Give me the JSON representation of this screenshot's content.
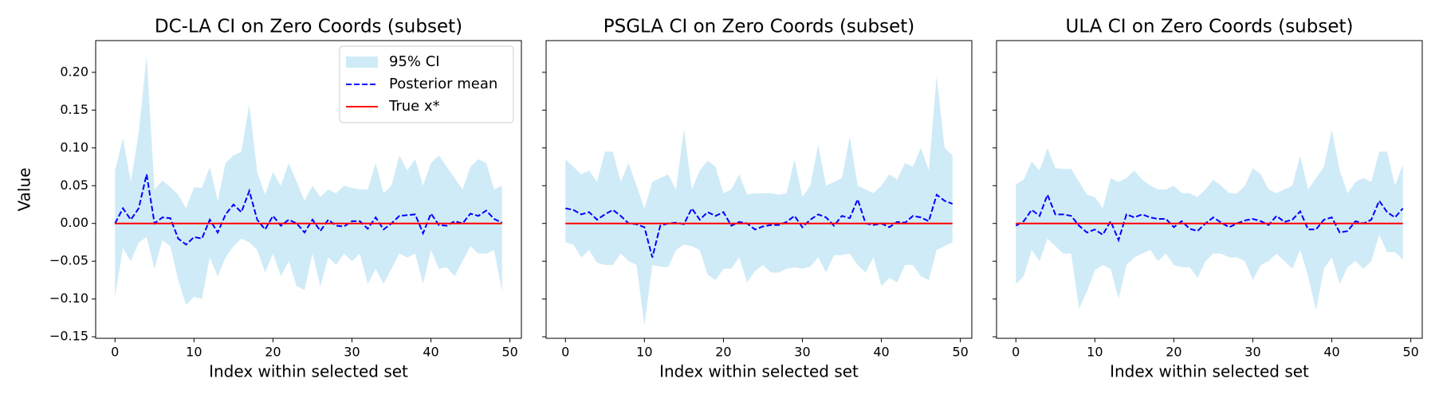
{
  "chart_data": [
    {
      "type": "ci_band",
      "title": "DC-LA CI on Zero Coords (subset)",
      "xlabel": "Index within selected set",
      "ylabel": "Value",
      "legend": "upper right",
      "sharey_labels": true,
      "x": [
        0,
        1,
        2,
        3,
        4,
        5,
        6,
        7,
        8,
        9,
        10,
        11,
        12,
        13,
        14,
        15,
        16,
        17,
        18,
        19,
        20,
        21,
        22,
        23,
        24,
        25,
        26,
        27,
        28,
        29,
        30,
        31,
        32,
        33,
        34,
        35,
        36,
        37,
        38,
        39,
        40,
        41,
        42,
        43,
        44,
        45,
        46,
        47,
        48,
        49
      ],
      "xlim": [
        -2.45,
        51.45
      ],
      "xticks": [
        0,
        10,
        20,
        30,
        40,
        50
      ],
      "ylim": [
        -0.152,
        0.242
      ],
      "yticks": [
        {
          "value": -0.15,
          "label": "−0.15"
        },
        {
          "value": -0.1,
          "label": "−0.10"
        },
        {
          "value": -0.05,
          "label": "−0.05"
        },
        {
          "value": 0,
          "label": "0.00"
        },
        {
          "value": 0.05,
          "label": "0.05"
        },
        {
          "value": 0.1,
          "label": "0.10"
        },
        {
          "value": 0.15,
          "label": "0.15"
        },
        {
          "value": 0.2,
          "label": "0.20"
        }
      ],
      "series": [
        {
          "name": "95% CI",
          "kind": "band",
          "color": "#87ceeb",
          "alpha": 0.4,
          "upper": [
            0.07,
            0.113,
            0.055,
            0.12,
            0.222,
            0.045,
            0.057,
            0.048,
            0.038,
            0.02,
            0.048,
            0.047,
            0.075,
            0.03,
            0.08,
            0.09,
            0.095,
            0.158,
            0.068,
            0.038,
            0.068,
            0.05,
            0.08,
            0.055,
            0.03,
            0.05,
            0.035,
            0.045,
            0.04,
            0.05,
            0.047,
            0.045,
            0.045,
            0.08,
            0.04,
            0.05,
            0.09,
            0.07,
            0.085,
            0.05,
            0.08,
            0.09,
            0.075,
            0.06,
            0.045,
            0.075,
            0.085,
            0.08,
            0.045,
            0.05
          ],
          "lower": [
            -0.097,
            -0.033,
            -0.05,
            -0.025,
            -0.018,
            -0.06,
            -0.022,
            -0.03,
            -0.075,
            -0.108,
            -0.097,
            -0.1,
            -0.045,
            -0.07,
            -0.045,
            -0.03,
            -0.02,
            -0.025,
            -0.035,
            -0.065,
            -0.04,
            -0.07,
            -0.05,
            -0.083,
            -0.088,
            -0.04,
            -0.083,
            -0.045,
            -0.055,
            -0.04,
            -0.05,
            -0.04,
            -0.08,
            -0.06,
            -0.08,
            -0.06,
            -0.04,
            -0.045,
            -0.04,
            -0.08,
            -0.035,
            -0.06,
            -0.058,
            -0.07,
            -0.05,
            -0.03,
            -0.04,
            -0.04,
            -0.035,
            -0.09
          ]
        },
        {
          "name": "Posterior mean",
          "kind": "dashed",
          "color": "#0000ff",
          "values": [
            0,
            0.02,
            0.005,
            0.02,
            0.065,
            0,
            0.008,
            0.007,
            -0.02,
            -0.028,
            -0.018,
            -0.02,
            0.005,
            -0.012,
            0.012,
            0.025,
            0.015,
            0.043,
            0.005,
            -0.008,
            0.01,
            -0.003,
            0.005,
            0,
            -0.012,
            0.005,
            -0.01,
            0.005,
            -0.003,
            -0.004,
            0.003,
            0.003,
            -0.007,
            0.008,
            -0.008,
            0,
            0.01,
            0.011,
            0.012,
            -0.013,
            0.013,
            -0.002,
            -0.003,
            0.003,
            0,
            0.013,
            0.01,
            0.017,
            0.006,
            0.001
          ]
        },
        {
          "name": "True x*",
          "kind": "solid",
          "color": "#ff0000",
          "values": [
            0,
            0,
            0,
            0,
            0,
            0,
            0,
            0,
            0,
            0,
            0,
            0,
            0,
            0,
            0,
            0,
            0,
            0,
            0,
            0,
            0,
            0,
            0,
            0,
            0,
            0,
            0,
            0,
            0,
            0,
            0,
            0,
            0,
            0,
            0,
            0,
            0,
            0,
            0,
            0,
            0,
            0,
            0,
            0,
            0,
            0,
            0,
            0,
            0,
            0
          ]
        }
      ]
    },
    {
      "type": "ci_band",
      "title": "PSGLA CI on Zero Coords (subset)",
      "xlabel": "Index within selected set",
      "sharey_labels": false,
      "x": [
        0,
        1,
        2,
        3,
        4,
        5,
        6,
        7,
        8,
        9,
        10,
        11,
        12,
        13,
        14,
        15,
        16,
        17,
        18,
        19,
        20,
        21,
        22,
        23,
        24,
        25,
        26,
        27,
        28,
        29,
        30,
        31,
        32,
        33,
        34,
        35,
        36,
        37,
        38,
        39,
        40,
        41,
        42,
        43,
        44,
        45,
        46,
        47,
        48,
        49
      ],
      "xlim": [
        -2.45,
        51.45
      ],
      "xticks": [
        0,
        10,
        20,
        30,
        40,
        50
      ],
      "ylim": [
        -0.152,
        0.242
      ],
      "yticks": [
        -0.15,
        -0.1,
        -0.05,
        0,
        0.05,
        0.1,
        0.15,
        0.2
      ],
      "series": [
        {
          "kind": "band",
          "color": "#87ceeb",
          "alpha": 0.4,
          "upper": [
            0.085,
            0.075,
            0.065,
            0.07,
            0.055,
            0.095,
            0.095,
            0.055,
            0.08,
            0.05,
            0.02,
            0.055,
            0.06,
            0.065,
            0.045,
            0.125,
            0.045,
            0.07,
            0.083,
            0.075,
            0.04,
            0.045,
            0.065,
            0.038,
            0.04,
            0.04,
            0.04,
            0.038,
            0.04,
            0.085,
            0.035,
            0.05,
            0.104,
            0.05,
            0.055,
            0.06,
            0.115,
            0.05,
            0.045,
            0.04,
            0.05,
            0.065,
            0.058,
            0.08,
            0.075,
            0.1,
            0.07,
            0.195,
            0.1,
            0.09
          ],
          "lower": [
            -0.025,
            -0.028,
            -0.045,
            -0.035,
            -0.052,
            -0.055,
            -0.055,
            -0.04,
            -0.05,
            -0.055,
            -0.135,
            -0.055,
            -0.057,
            -0.058,
            -0.035,
            -0.028,
            -0.03,
            -0.035,
            -0.068,
            -0.075,
            -0.06,
            -0.06,
            -0.045,
            -0.078,
            -0.063,
            -0.055,
            -0.065,
            -0.065,
            -0.06,
            -0.058,
            -0.06,
            -0.057,
            -0.045,
            -0.065,
            -0.042,
            -0.042,
            -0.04,
            -0.055,
            -0.065,
            -0.045,
            -0.083,
            -0.072,
            -0.078,
            -0.055,
            -0.055,
            -0.07,
            -0.075,
            -0.035,
            -0.03,
            -0.025
          ]
        },
        {
          "kind": "dashed",
          "color": "#0000ff",
          "values": [
            0.02,
            0.018,
            0.012,
            0.015,
            0.005,
            0.012,
            0.018,
            0.01,
            0,
            -0.001,
            -0.005,
            -0.045,
            -0.003,
            0,
            0.001,
            -0.001,
            0.02,
            0.005,
            0.015,
            0.01,
            0.015,
            -0.003,
            0.002,
            0,
            -0.008,
            -0.004,
            -0.002,
            -0.002,
            0.002,
            0.01,
            -0.005,
            0.005,
            0.012,
            0.008,
            -0.003,
            0.01,
            0.007,
            0.032,
            0,
            -0.002,
            0,
            -0.005,
            0.002,
            0.001,
            0.01,
            0.008,
            0.003,
            0.038,
            0.03,
            0.026
          ]
        },
        {
          "kind": "solid",
          "color": "#ff0000",
          "values": [
            0,
            0,
            0,
            0,
            0,
            0,
            0,
            0,
            0,
            0,
            0,
            0,
            0,
            0,
            0,
            0,
            0,
            0,
            0,
            0,
            0,
            0,
            0,
            0,
            0,
            0,
            0,
            0,
            0,
            0,
            0,
            0,
            0,
            0,
            0,
            0,
            0,
            0,
            0,
            0,
            0,
            0,
            0,
            0,
            0,
            0,
            0,
            0,
            0,
            0
          ]
        }
      ]
    },
    {
      "type": "ci_band",
      "title": "ULA CI on Zero Coords (subset)",
      "xlabel": "Index within selected set",
      "sharey_labels": false,
      "x": [
        0,
        1,
        2,
        3,
        4,
        5,
        6,
        7,
        8,
        9,
        10,
        11,
        12,
        13,
        14,
        15,
        16,
        17,
        18,
        19,
        20,
        21,
        22,
        23,
        24,
        25,
        26,
        27,
        28,
        29,
        30,
        31,
        32,
        33,
        34,
        35,
        36,
        37,
        38,
        39,
        40,
        41,
        42,
        43,
        44,
        45,
        46,
        47,
        48,
        49
      ],
      "xlim": [
        -2.45,
        51.45
      ],
      "xticks": [
        0,
        10,
        20,
        30,
        40,
        50
      ],
      "ylim": [
        -0.152,
        0.242
      ],
      "yticks": [
        -0.15,
        -0.1,
        -0.05,
        0,
        0.05,
        0.1,
        0.15,
        0.2
      ],
      "series": [
        {
          "kind": "band",
          "color": "#87ceeb",
          "alpha": 0.4,
          "upper": [
            0.052,
            0.058,
            0.082,
            0.07,
            0.1,
            0.073,
            0.072,
            0.072,
            0.055,
            0.038,
            0.035,
            0.02,
            0.06,
            0.055,
            0.06,
            0.07,
            0.058,
            0.05,
            0.045,
            0.045,
            0.05,
            0.04,
            0.04,
            0.035,
            0.045,
            0.058,
            0.05,
            0.04,
            0.04,
            0.05,
            0.073,
            0.065,
            0.045,
            0.04,
            0.045,
            0.05,
            0.09,
            0.045,
            0.06,
            0.075,
            0.124,
            0.07,
            0.04,
            0.055,
            0.06,
            0.055,
            0.095,
            0.095,
            0.05,
            0.078
          ],
          "lower": [
            -0.08,
            -0.07,
            -0.035,
            -0.05,
            -0.02,
            -0.03,
            -0.04,
            -0.04,
            -0.113,
            -0.09,
            -0.062,
            -0.055,
            -0.06,
            -0.1,
            -0.055,
            -0.045,
            -0.04,
            -0.035,
            -0.05,
            -0.04,
            -0.055,
            -0.058,
            -0.058,
            -0.072,
            -0.05,
            -0.04,
            -0.04,
            -0.045,
            -0.045,
            -0.05,
            -0.075,
            -0.055,
            -0.05,
            -0.04,
            -0.05,
            -0.06,
            -0.035,
            -0.07,
            -0.115,
            -0.06,
            -0.045,
            -0.08,
            -0.058,
            -0.05,
            -0.06,
            -0.05,
            -0.015,
            -0.038,
            -0.038,
            -0.048
          ]
        },
        {
          "kind": "dashed",
          "color": "#0000ff",
          "values": [
            -0.003,
            0.003,
            0.018,
            0.01,
            0.038,
            0.012,
            0.012,
            0.01,
            -0.003,
            -0.012,
            -0.008,
            -0.015,
            0.003,
            -0.022,
            0.012,
            0.008,
            0.012,
            0.008,
            0.006,
            0.006,
            -0.005,
            0.003,
            -0.007,
            -0.01,
            0,
            0.008,
            0.001,
            -0.005,
            0,
            0.004,
            0.006,
            0.003,
            -0.002,
            0.01,
            0.002,
            0.005,
            0.016,
            -0.008,
            -0.008,
            0.005,
            0.008,
            -0.012,
            -0.01,
            0.003,
            0,
            0.005,
            0.03,
            0.015,
            0.008,
            0.02
          ]
        },
        {
          "kind": "solid",
          "color": "#ff0000",
          "values": [
            0,
            0,
            0,
            0,
            0,
            0,
            0,
            0,
            0,
            0,
            0,
            0,
            0,
            0,
            0,
            0,
            0,
            0,
            0,
            0,
            0,
            0,
            0,
            0,
            0,
            0,
            0,
            0,
            0,
            0,
            0,
            0,
            0,
            0,
            0,
            0,
            0,
            0,
            0,
            0,
            0,
            0,
            0,
            0,
            0,
            0,
            0,
            0,
            0,
            0
          ]
        }
      ]
    }
  ]
}
